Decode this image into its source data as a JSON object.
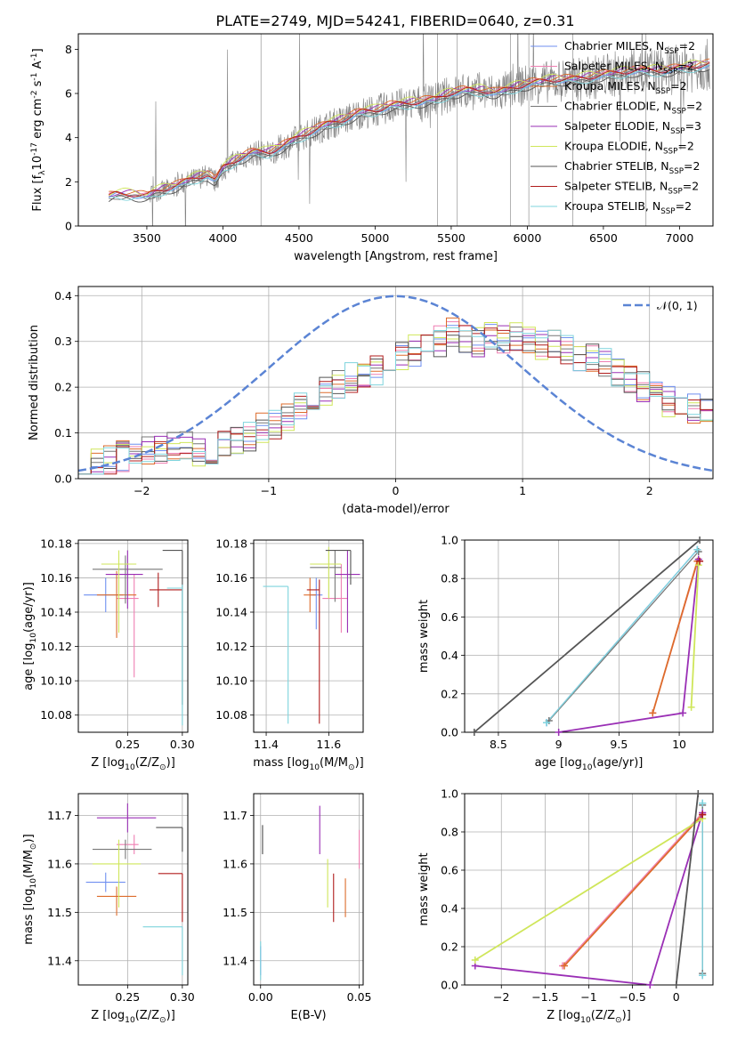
{
  "page_title": "PLATE=2749, MJD=54241, FIBERID=0640, z=0.31",
  "legend_labels": [
    "Chabrier MILES, N$_{SSP}$=2",
    "Salpeter MILES, N$_{SSP}$=2",
    "Kroupa MILES, N$_{SSP}$=2",
    "Chabrier ELODIE, N$_{SSP}$=2",
    "Salpeter ELODIE, N$_{SSP}$=3",
    "Kroupa ELODIE, N$_{SSP}$=2",
    "Chabrier STELIB, N$_{SSP}$=2",
    "Salpeter STELIB, N$_{SSP}$=2",
    "Kroupa STELIB, N$_{SSP}$=2"
  ],
  "model_colors": [
    "#6f8ff0",
    "#ef7fb2",
    "#dd6b2b",
    "#777777",
    "#9a2fb5",
    "#cfe65a",
    "#555555",
    "#b01c1c",
    "#7fd4dd"
  ],
  "model_names": [
    "Chabrier MILES",
    "Salpeter MILES",
    "Kroupa MILES",
    "Chabrier ELODIE",
    "Salpeter ELODIE",
    "Kroupa ELODIE",
    "Chabrier STELIB",
    "Salpeter STELIB",
    "Kroupa STELIB"
  ],
  "chart_data": [
    {
      "panel": "spectrum",
      "type": "line",
      "xlabel": "wavelength [Angstrom, rest frame]",
      "ylabel": "Flux [f$_\\lambda$10$^{-17}$ erg cm$^{-2}$ s$^{-1}$ A$^{-1}$]",
      "xlim": [
        3050,
        7220
      ],
      "ylim": [
        0,
        8.7
      ],
      "xticks": [
        3500,
        4000,
        4500,
        5000,
        5500,
        6000,
        6500,
        7000
      ],
      "yticks": [
        0,
        2,
        4,
        6,
        8
      ],
      "grid": false,
      "legend_location": "upper right",
      "data_color": "#808080",
      "continuum": {
        "x": [
          3250,
          3300,
          3400,
          3500,
          3550,
          3600,
          3700,
          3800,
          3900,
          3950,
          4000,
          4100,
          4200,
          4300,
          4400,
          4500,
          4600,
          4700,
          4800,
          4900,
          5000,
          5100,
          5200,
          5300,
          5400,
          5500,
          5600,
          5700,
          5800,
          5900,
          6000,
          6100,
          6200,
          6300,
          6400,
          6500,
          6600,
          6700,
          6800,
          6900,
          7000,
          7100,
          7200
        ],
        "y": [
          1.3,
          1.4,
          1.4,
          1.3,
          1.5,
          1.6,
          1.8,
          2.1,
          2.3,
          2.0,
          2.6,
          3.0,
          3.3,
          3.3,
          3.6,
          4.0,
          4.3,
          4.6,
          4.8,
          5.1,
          5.2,
          5.4,
          5.5,
          5.6,
          5.7,
          6.0,
          6.1,
          6.1,
          6.0,
          6.2,
          6.4,
          6.5,
          6.6,
          6.6,
          6.7,
          6.8,
          6.9,
          7.0,
          7.0,
          7.0,
          7.1,
          7.2,
          7.3
        ]
      },
      "model_spreads": [
        0.0,
        0.08,
        0.15,
        -0.08,
        0.12,
        0.2,
        -0.15,
        0.05,
        -0.12
      ]
    },
    {
      "panel": "residual_distribution",
      "type": "line",
      "xlabel": "(data-model)/error",
      "ylabel": "Normed distribution",
      "xlim": [
        -2.5,
        2.5
      ],
      "ylim": [
        0,
        0.42
      ],
      "xticks": [
        -2,
        -1,
        0,
        1,
        2
      ],
      "yticks": [
        0.0,
        0.1,
        0.2,
        0.3,
        0.4
      ],
      "grid": true,
      "legend": [
        "$\\mathcal{N}(0,1)$"
      ],
      "gaussian_color": "#5b84d4",
      "bins": {
        "start": -2.5,
        "width": 0.1,
        "count": 50
      },
      "base_hist": [
        0.02,
        0.03,
        0.04,
        0.05,
        0.05,
        0.06,
        0.06,
        0.07,
        0.07,
        0.06,
        0.06,
        0.07,
        0.08,
        0.09,
        0.11,
        0.12,
        0.14,
        0.16,
        0.18,
        0.19,
        0.21,
        0.22,
        0.23,
        0.24,
        0.25,
        0.27,
        0.28,
        0.3,
        0.3,
        0.32,
        0.31,
        0.3,
        0.31,
        0.3,
        0.31,
        0.3,
        0.29,
        0.29,
        0.28,
        0.27,
        0.26,
        0.25,
        0.23,
        0.22,
        0.2,
        0.19,
        0.17,
        0.16,
        0.15,
        0.15
      ]
    },
    {
      "panel": "age_vs_Z",
      "type": "scatter",
      "xlabel": "Z [log$_{10}$(Z/Z$_\\odot$)]",
      "ylabel": "age  [log$_{10}$(age/yr)]",
      "xlim": [
        0.205,
        0.305
      ],
      "ylim": [
        10.07,
        10.182
      ],
      "xticks": [
        0.25,
        0.3
      ],
      "xtick_labels": [
        "0.25",
        "0.30"
      ],
      "yticks": [
        10.08,
        10.1,
        10.12,
        10.14,
        10.16,
        10.18
      ],
      "grid": true,
      "points": [
        {
          "x": 0.23,
          "y": 10.15,
          "xerr": [
            0.02,
            0.016
          ],
          "yerr": [
            0.01,
            0.01
          ]
        },
        {
          "x": 0.256,
          "y": 10.148,
          "xerr": [
            0.016,
            0.004
          ],
          "yerr": [
            0.046,
            0.014
          ]
        },
        {
          "x": 0.24,
          "y": 10.15,
          "xerr": [
            0.018,
            0.018
          ],
          "yerr": [
            0.025,
            0.014
          ]
        },
        {
          "x": 0.248,
          "y": 10.165,
          "xerr": [
            0.03,
            0.034
          ],
          "yerr": [
            0.02,
            0.008
          ]
        },
        {
          "x": 0.25,
          "y": 10.162,
          "xerr": [
            0.02,
            0.014
          ],
          "yerr": [
            0.02,
            0.014
          ]
        },
        {
          "x": 0.242,
          "y": 10.168,
          "xerr": [
            0.016,
            0.016
          ],
          "yerr": [
            0.04,
            0.008
          ]
        },
        {
          "x": 0.3,
          "y": 10.176,
          "xerr": [
            0.018,
            0.0
          ],
          "yerr": [
            0.09,
            0.0
          ]
        },
        {
          "x": 0.278,
          "y": 10.153,
          "xerr": [
            0.008,
            0.022
          ],
          "yerr": [
            0.01,
            0.01
          ]
        },
        {
          "x": 0.3,
          "y": 10.154,
          "xerr": [
            0.014,
            0.0
          ],
          "yerr": [
            0.08,
            0.002
          ]
        }
      ]
    },
    {
      "panel": "age_vs_mass",
      "type": "scatter",
      "xlabel": "mass [log$_{10}$(M/M$_\\odot$)]",
      "ylabel": "",
      "xlim": [
        11.36,
        11.71
      ],
      "ylim": [
        10.07,
        10.182
      ],
      "xticks": [
        11.4,
        11.6
      ],
      "xtick_labels": [
        "11.4",
        "11.6"
      ],
      "yticks": [
        10.08,
        10.1,
        10.12,
        10.14,
        10.16,
        10.18
      ],
      "grid": true,
      "points": [
        {
          "x": 11.56,
          "y": 10.15,
          "xerr": [
            0.02,
            0.02
          ],
          "yerr": [
            0.02,
            0.01
          ]
        },
        {
          "x": 11.64,
          "y": 10.148,
          "xerr": [
            0.06,
            0.02
          ],
          "yerr": [
            0.02,
            0.02
          ]
        },
        {
          "x": 11.54,
          "y": 10.15,
          "xerr": [
            0.02,
            0.02
          ],
          "yerr": [
            0.01,
            0.01
          ]
        },
        {
          "x": 11.62,
          "y": 10.166,
          "xerr": [
            0.08,
            0.02
          ],
          "yerr": [
            0.02,
            0.01
          ]
        },
        {
          "x": 11.66,
          "y": 10.162,
          "xerr": [
            0.04,
            0.04
          ],
          "yerr": [
            0.034,
            0.014
          ]
        },
        {
          "x": 11.6,
          "y": 10.168,
          "xerr": [
            0.06,
            0.04
          ],
          "yerr": [
            0.02,
            0.01
          ]
        },
        {
          "x": 11.67,
          "y": 10.176,
          "xerr": [
            0.08,
            0.0
          ],
          "yerr": [
            0.02,
            0.0
          ]
        },
        {
          "x": 11.57,
          "y": 10.153,
          "xerr": [
            0.04,
            0.0
          ],
          "yerr": [
            0.078,
            0.006
          ]
        },
        {
          "x": 11.47,
          "y": 10.155,
          "xerr": [
            0.08,
            0.0
          ],
          "yerr": [
            0.08,
            0.0
          ]
        }
      ]
    },
    {
      "panel": "mass_weight_vs_age",
      "type": "line",
      "xlabel": "age  [log$_{10}$(age/yr)]",
      "ylabel": "mass weight",
      "xlim": [
        8.22,
        10.28
      ],
      "ylim": [
        0,
        1.0
      ],
      "xticks": [
        8.5,
        9.0,
        9.5,
        10.0
      ],
      "yticks": [
        0.0,
        0.2,
        0.4,
        0.6,
        0.8,
        1.0
      ],
      "grid": true,
      "series": [
        {
          "x": [
            8.9,
            10.15
          ],
          "y": [
            0.05,
            0.95
          ]
        },
        {
          "x": [
            9.78,
            10.16
          ],
          "y": [
            0.1,
            0.9
          ]
        },
        {
          "x": [
            9.78,
            10.15
          ],
          "y": [
            0.1,
            0.89
          ]
        },
        {
          "x": [
            8.92,
            10.16
          ],
          "y": [
            0.06,
            0.94
          ]
        },
        {
          "x": [
            9.0,
            10.03,
            10.16
          ],
          "y": [
            0.0,
            0.1,
            0.9
          ]
        },
        {
          "x": [
            10.1,
            10.16
          ],
          "y": [
            0.13,
            0.87
          ]
        },
        {
          "x": [
            8.3,
            10.17
          ],
          "y": [
            0.0,
            1.0
          ]
        },
        {
          "x": [
            10.17
          ],
          "y": [
            0.89
          ]
        },
        {
          "x": [
            8.9,
            10.15
          ],
          "y": [
            0.05,
            0.95
          ]
        }
      ]
    },
    {
      "panel": "mass_vs_Z",
      "type": "scatter",
      "xlabel": "Z [log$_{10}$(Z/Z$_\\odot$)]",
      "ylabel": "mass [log$_{10}$(M/M$_\\odot$)]",
      "xlim": [
        0.205,
        0.305
      ],
      "ylim": [
        11.35,
        11.745
      ],
      "xticks": [
        0.25,
        0.3
      ],
      "xtick_labels": [
        "0.25",
        "0.30"
      ],
      "yticks": [
        11.4,
        11.5,
        11.6,
        11.7
      ],
      "grid": true,
      "points": [
        {
          "x": 0.23,
          "y": 11.562,
          "xerr": [
            0.018,
            0.018
          ],
          "yerr": [
            0.02,
            0.02
          ]
        },
        {
          "x": 0.256,
          "y": 11.64,
          "xerr": [
            0.016,
            0.004
          ],
          "yerr": [
            0.02,
            0.02
          ]
        },
        {
          "x": 0.24,
          "y": 11.533,
          "xerr": [
            0.018,
            0.018
          ],
          "yerr": [
            0.04,
            0.02
          ]
        },
        {
          "x": 0.248,
          "y": 11.63,
          "xerr": [
            0.03,
            0.024
          ],
          "yerr": [
            0.02,
            0.02
          ]
        },
        {
          "x": 0.25,
          "y": 11.695,
          "xerr": [
            0.028,
            0.026
          ],
          "yerr": [
            0.03,
            0.03
          ]
        },
        {
          "x": 0.242,
          "y": 11.6,
          "xerr": [
            0.024,
            0.02
          ],
          "yerr": [
            0.09,
            0.05
          ]
        },
        {
          "x": 0.3,
          "y": 11.675,
          "xerr": [
            0.024,
            0.0
          ],
          "yerr": [
            0.05,
            0.0
          ]
        },
        {
          "x": 0.3,
          "y": 11.58,
          "xerr": [
            0.022,
            0.0
          ],
          "yerr": [
            0.1,
            0.0
          ]
        },
        {
          "x": 0.3,
          "y": 11.47,
          "xerr": [
            0.036,
            0.0
          ],
          "yerr": [
            0.1,
            0.0
          ]
        }
      ]
    },
    {
      "panel": "mass_vs_EBV",
      "type": "scatter",
      "xlabel": "E(B-V)",
      "ylabel": "",
      "xlim": [
        -0.0035,
        0.052
      ],
      "ylim": [
        11.35,
        11.745
      ],
      "xticks": [
        0.0,
        0.05
      ],
      "xtick_labels": [
        "0.00",
        "0.05"
      ],
      "yticks": [
        11.4,
        11.5,
        11.6,
        11.7
      ],
      "grid": true,
      "points": [
        {
          "x": 0.0,
          "y": 11.4,
          "yerr": [
            0.03,
            0.03
          ]
        },
        {
          "x": 0.05,
          "y": 11.63,
          "yerr": [
            0.04,
            0.04
          ]
        },
        {
          "x": 0.043,
          "y": 11.53,
          "yerr": [
            0.04,
            0.04
          ]
        },
        {
          "x": 0.001,
          "y": 11.65,
          "yerr": [
            0.03,
            0.03
          ]
        },
        {
          "x": 0.03,
          "y": 11.67,
          "yerr": [
            0.05,
            0.05
          ]
        },
        {
          "x": 0.034,
          "y": 11.56,
          "yerr": [
            0.05,
            0.05
          ]
        },
        {
          "x": 0.001,
          "y": 11.65,
          "yerr": [
            0.03,
            0.03
          ]
        },
        {
          "x": 0.037,
          "y": 11.53,
          "yerr": [
            0.05,
            0.05
          ]
        },
        {
          "x": 0.0,
          "y": 11.4,
          "yerr": [
            0.04,
            0.04
          ]
        }
      ]
    },
    {
      "panel": "mass_weight_vs_Z",
      "type": "line",
      "xlabel": "Z [log$_{10}$(Z/Z$_\\odot$)]",
      "ylabel": "mass weight",
      "xlim": [
        -2.42,
        0.42
      ],
      "ylim": [
        0,
        1.0
      ],
      "xticks": [
        -2.0,
        -1.5,
        -1.0,
        -0.5,
        0.0
      ],
      "yticks": [
        0.0,
        0.2,
        0.4,
        0.6,
        0.8,
        1.0
      ],
      "grid": true,
      "series": [
        {
          "x": [
            0.3,
            0.3
          ],
          "y": [
            0.05,
            0.95
          ]
        },
        {
          "x": [
            -1.3,
            0.3
          ],
          "y": [
            0.1,
            0.9
          ]
        },
        {
          "x": [
            -1.28,
            0.3
          ],
          "y": [
            0.1,
            0.89
          ]
        },
        {
          "x": [
            0.3,
            0.3
          ],
          "y": [
            0.06,
            0.94
          ]
        },
        {
          "x": [
            -2.3,
            -0.3,
            0.3
          ],
          "y": [
            0.1,
            0.0,
            0.9
          ]
        },
        {
          "x": [
            -2.3,
            0.3
          ],
          "y": [
            0.13,
            0.87
          ]
        },
        {
          "x": [
            0.0,
            0.25
          ],
          "y": [
            0.0,
            1.0
          ]
        },
        {
          "x": [
            0.3
          ],
          "y": [
            0.89
          ]
        },
        {
          "x": [
            0.3,
            0.3
          ],
          "y": [
            0.05,
            0.95
          ]
        }
      ]
    }
  ]
}
